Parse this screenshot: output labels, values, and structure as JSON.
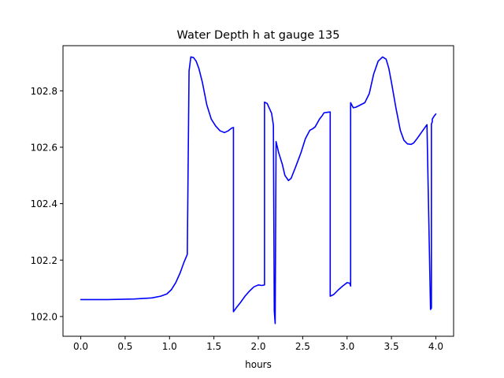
{
  "chart_data": {
    "type": "line",
    "title": "Water Depth h at gauge 135",
    "xlabel": "hours",
    "ylabel": "",
    "xlim": [
      -0.2,
      4.2
    ],
    "ylim": [
      101.93,
      102.96
    ],
    "grid": false,
    "xticks": [
      0.0,
      0.5,
      1.0,
      1.5,
      2.0,
      2.5,
      3.0,
      3.5,
      4.0
    ],
    "xtick_labels": [
      "0.0",
      "0.5",
      "1.0",
      "1.5",
      "2.0",
      "2.5",
      "3.0",
      "3.5",
      "4.0"
    ],
    "yticks": [
      102.0,
      102.2,
      102.4,
      102.6,
      102.8
    ],
    "ytick_labels": [
      "102.0",
      "102.2",
      "102.4",
      "102.6",
      "102.8"
    ],
    "series": [
      {
        "color": "#0000ff",
        "x": [
          0.0,
          0.3,
          0.6,
          0.8,
          0.9,
          0.97,
          1.02,
          1.07,
          1.12,
          1.16,
          1.2,
          1.22,
          1.22,
          1.24,
          1.27,
          1.3,
          1.33,
          1.37,
          1.42,
          1.47,
          1.52,
          1.57,
          1.62,
          1.66,
          1.7,
          1.72,
          1.72,
          1.75,
          1.8,
          1.85,
          1.9,
          1.95,
          2.0,
          2.04,
          2.07,
          2.07,
          2.1,
          2.15,
          2.17,
          2.18,
          2.19,
          2.2,
          2.2,
          2.23,
          2.27,
          2.3,
          2.34,
          2.37,
          2.42,
          2.48,
          2.53,
          2.58,
          2.61,
          2.64,
          2.69,
          2.72,
          2.74,
          2.78,
          2.81,
          2.81,
          2.85,
          2.9,
          2.95,
          3.0,
          3.03,
          3.04,
          3.04,
          3.07,
          3.1,
          3.15,
          3.2,
          3.25,
          3.3,
          3.35,
          3.4,
          3.44,
          3.47,
          3.5,
          3.55,
          3.6,
          3.64,
          3.68,
          3.72,
          3.75,
          3.78,
          3.81,
          3.85,
          3.9,
          3.94,
          3.95,
          3.95,
          3.96,
          3.96,
          3.98,
          4.0
        ],
        "y": [
          102.06,
          102.06,
          102.062,
          102.066,
          102.072,
          102.08,
          102.095,
          102.12,
          102.155,
          102.19,
          102.22,
          102.87,
          102.87,
          102.92,
          102.918,
          102.905,
          102.88,
          102.83,
          102.75,
          102.7,
          102.675,
          102.658,
          102.652,
          102.658,
          102.668,
          102.67,
          102.017,
          102.03,
          102.05,
          102.072,
          102.09,
          102.105,
          102.112,
          102.11,
          102.112,
          102.76,
          102.755,
          102.72,
          102.678,
          102.02,
          101.975,
          102.62,
          102.62,
          102.58,
          102.54,
          102.5,
          102.482,
          102.49,
          102.53,
          102.58,
          102.63,
          102.66,
          102.665,
          102.672,
          102.7,
          102.712,
          102.722,
          102.724,
          102.725,
          102.072,
          102.078,
          102.094,
          102.108,
          102.12,
          102.118,
          102.108,
          102.758,
          102.74,
          102.742,
          102.75,
          102.758,
          102.79,
          102.86,
          102.905,
          102.92,
          102.912,
          102.88,
          102.83,
          102.74,
          102.66,
          102.625,
          102.612,
          102.61,
          102.615,
          102.627,
          102.64,
          102.658,
          102.68,
          102.025,
          102.03,
          102.682,
          102.69,
          102.7,
          102.71,
          102.718
        ]
      }
    ]
  }
}
